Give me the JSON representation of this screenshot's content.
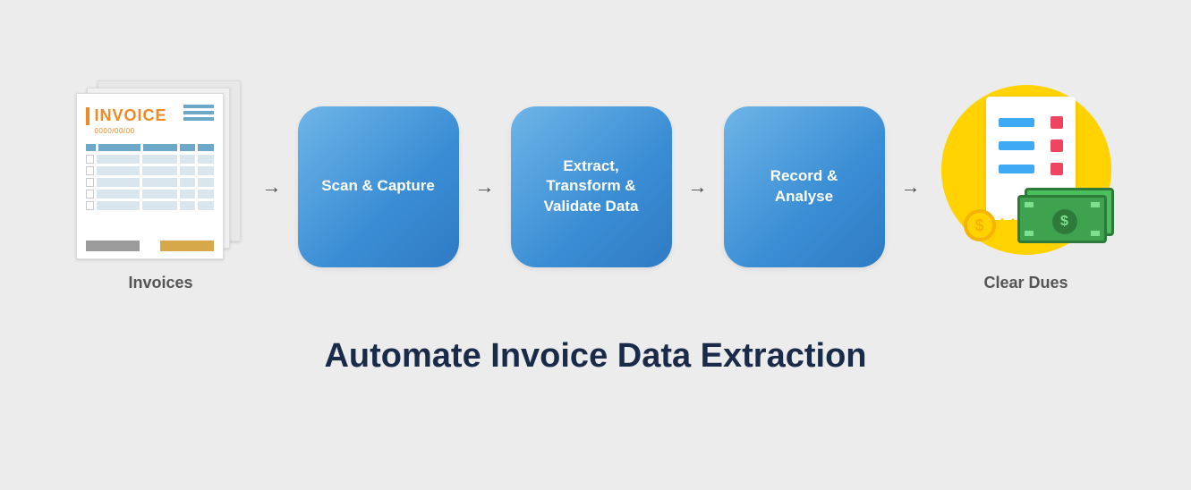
{
  "diagram": {
    "type": "flowchart",
    "background_color": "#ececec",
    "title": "Automate Invoice Data Extraction",
    "title_color": "#1a2b4a",
    "title_fontsize": 38,
    "arrow_glyph": "→",
    "arrow_color": "#4a4a4a",
    "step_box": {
      "width": 180,
      "height": 180,
      "border_radius": 28,
      "gradient_from": "#6eb5e8",
      "gradient_to": "#2e7bc4",
      "text_color": "#ffffff",
      "font_size": 17,
      "font_weight": 600
    },
    "nodes": [
      {
        "id": "invoices",
        "kind": "illustration",
        "label": "Invoices"
      },
      {
        "id": "scan",
        "kind": "step",
        "label": "Scan & Capture"
      },
      {
        "id": "extract",
        "kind": "step",
        "label": "Extract, Transform & Validate Data"
      },
      {
        "id": "record",
        "kind": "step",
        "label": "Record & Analyse"
      },
      {
        "id": "clear",
        "kind": "illustration",
        "label": "Clear Dues"
      }
    ],
    "edges": [
      {
        "from": "invoices",
        "to": "scan"
      },
      {
        "from": "scan",
        "to": "extract"
      },
      {
        "from": "extract",
        "to": "record"
      },
      {
        "from": "record",
        "to": "clear"
      }
    ],
    "end_label_color": "#555555",
    "end_label_fontsize": 18
  },
  "invoice_illustration": {
    "title_text": "INVOICE",
    "title_color": "#f08a24",
    "date_text": "0000/00/00",
    "accent_gold": "#d6a84a",
    "accent_blue": "#6ea8c8",
    "row_fill": "#d9e6ee",
    "page_bg": "#ffffff",
    "stack_bg": "#f0f0f0",
    "row_count": 5
  },
  "clear_dues_illustration": {
    "circle_color": "#ffd200",
    "receipt_bg": "#ffffff",
    "receipt_line_blue": "#3fa9f5",
    "receipt_line_red": "#ef4560",
    "pin_color": "#2e7bc4",
    "coin_fill": "#ffd200",
    "coin_border": "#f4b400",
    "coin_symbol": "$",
    "cash_fill": "#3fa24f",
    "cash_border": "#2d7a3a",
    "cash_highlight": "#7de08e",
    "cash_symbol": "$"
  }
}
